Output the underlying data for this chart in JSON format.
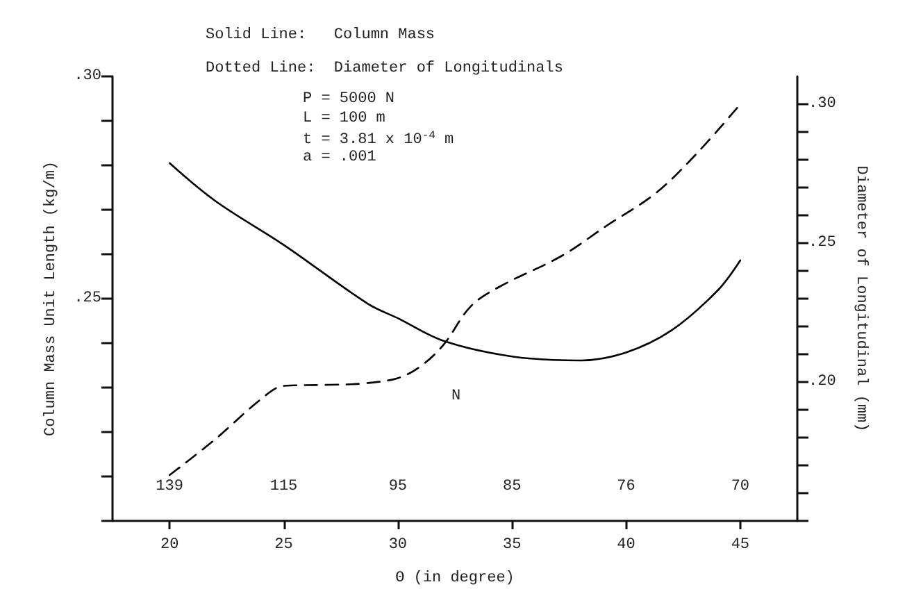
{
  "chart_data": {
    "type": "line",
    "annotations": [
      "Solid Line:   Column Mass",
      "Dotted Line:  Diameter of Longitudinals",
      "P = 5000 N",
      "L = 100 m",
      "t = 3.81 x 10$^{-4}$ m",
      "a = .001",
      "N",
      "139",
      "115",
      "95",
      "85",
      "76",
      "70"
    ],
    "xlabel": "Θ (in degree)",
    "ylabel": "Column Mass Unit Length (kg/m)",
    "y2label": "Diameter of Longitudinal (mm)",
    "xlim": [
      17.5,
      47.5
    ],
    "xticks": [
      20,
      25,
      30,
      35,
      40,
      45
    ],
    "ylim": [
      0.2,
      0.3
    ],
    "yticks": [
      {
        "value": 0.2,
        "label": null
      },
      {
        "value": 0.21,
        "label": null
      },
      {
        "value": 0.22,
        "label": null
      },
      {
        "value": 0.23,
        "label": null
      },
      {
        "value": 0.24,
        "label": null
      },
      {
        "value": 0.25,
        "label": ".25"
      },
      {
        "value": 0.26,
        "label": null
      },
      {
        "value": 0.27,
        "label": null
      },
      {
        "value": 0.28,
        "label": null
      },
      {
        "value": 0.29,
        "label": null
      },
      {
        "value": 0.3,
        "label": ".30"
      }
    ],
    "y2lim": [
      0.15,
      0.31
    ],
    "y2ticks": [
      {
        "value": 0.15,
        "label": null
      },
      {
        "value": 0.16,
        "label": null
      },
      {
        "value": 0.17,
        "label": null
      },
      {
        "value": 0.18,
        "label": null
      },
      {
        "value": 0.19,
        "label": null
      },
      {
        "value": 0.2,
        "label": ".20"
      },
      {
        "value": 0.21,
        "label": null
      },
      {
        "value": 0.22,
        "label": null
      },
      {
        "value": 0.23,
        "label": null
      },
      {
        "value": 0.24,
        "label": null
      },
      {
        "value": 0.25,
        "label": ".25"
      },
      {
        "value": 0.26,
        "label": null
      },
      {
        "value": 0.27,
        "label": null
      },
      {
        "value": 0.28,
        "label": null
      },
      {
        "value": 0.29,
        "label": null
      },
      {
        "value": 0.3,
        "label": ".30"
      }
    ],
    "grid": false,
    "marker": "none",
    "series": [
      {
        "color": "#000000",
        "line_style": "solid",
        "x": [
          20,
          22,
          25,
          28.7,
          30,
          32,
          35,
          38,
          40,
          42,
          44,
          45
        ],
        "values": [
          0.2805,
          0.272,
          0.2621,
          0.2488,
          0.2456,
          0.2405,
          0.237,
          0.2361,
          0.2379,
          0.2429,
          0.2518,
          0.2586
        ]
      },
      {
        "color": "#000000",
        "line_style": "dashed",
        "axis": "y2",
        "x": [
          20,
          22,
          24,
          25,
          27,
          28.5,
          30,
          31,
          32,
          33.2,
          34.5,
          37.2,
          39.1,
          41.3,
          43.1,
          45
        ],
        "values": [
          0.1665,
          0.1794,
          0.1938,
          0.1986,
          0.199,
          0.1995,
          0.2014,
          0.2057,
          0.2134,
          0.2273,
          0.2345,
          0.2455,
          0.256,
          0.268,
          0.2823,
          0.3
        ]
      }
    ]
  }
}
